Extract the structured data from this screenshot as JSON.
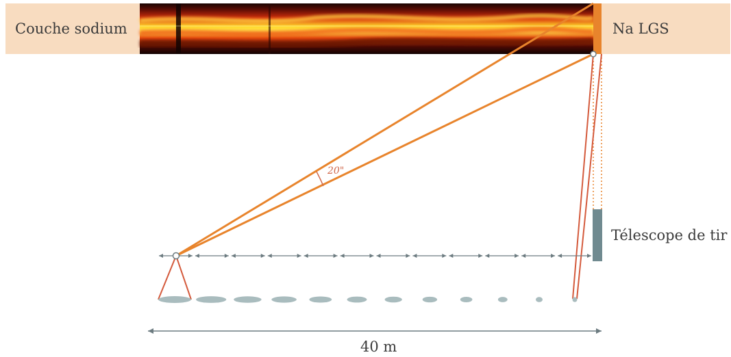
{
  "labels": {
    "sodium_layer": "Couche sodium",
    "guide_star": "Na LGS",
    "launch_telescope": "Télescope de tir",
    "angle": "20\"",
    "distance": "40 m"
  },
  "subapertures": {
    "count": 12
  },
  "colors": {
    "band_background": "#f8dcc0",
    "beam_orange": "#e8842c",
    "cone_red": "#d45a3c",
    "telescope_gray": "#708a90",
    "ellipse_gray": "#a9bcbe",
    "arrow_gray": "#6c7b80",
    "text": "#3a3a3a"
  },
  "icons": {
    "guide_star_marker": "circle-marker",
    "wavefront_sensor_marker": "circle-marker"
  }
}
